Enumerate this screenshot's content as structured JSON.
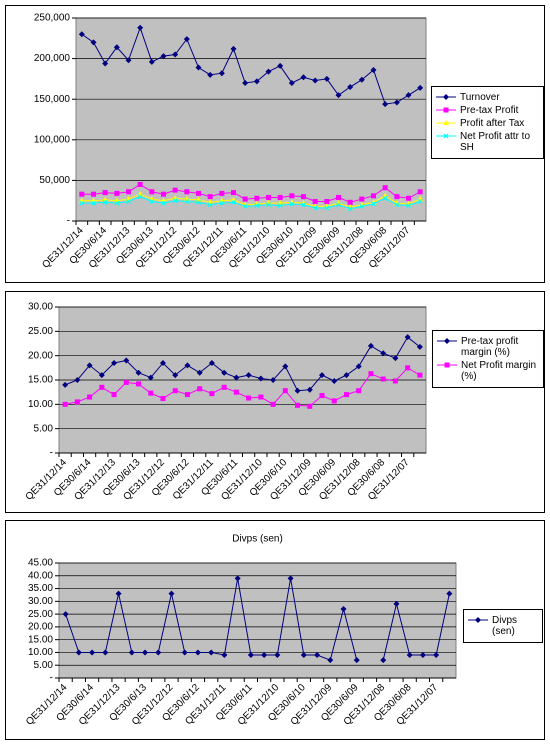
{
  "chart_data": [
    {
      "type": "line",
      "grid": true,
      "legend": "right",
      "categories": [
        "QE31/12/14",
        null,
        "QE30/6/14",
        null,
        "QE31/12/13",
        null,
        "QE30/6/13",
        null,
        "QE31/12/12",
        null,
        "QE30/6/12",
        null,
        "QE31/12/11",
        null,
        "QE30/6/11",
        null,
        "QE31/12/10",
        null,
        "QE30/6/10",
        null,
        "QE31/12/09",
        null,
        "QE30/6/09",
        null,
        "QE31/12/08",
        null,
        "QE30/6/08",
        null,
        "QE31/12/07",
        null
      ],
      "ylim": [
        0,
        250000
      ],
      "yticks": [
        {
          "value": 0,
          "label": "-"
        },
        {
          "value": 50000,
          "label": "50,000"
        },
        {
          "value": 100000,
          "label": "100,000"
        },
        {
          "value": 150000,
          "label": "150,000"
        },
        {
          "value": 200000,
          "label": "200,000"
        },
        {
          "value": 250000,
          "label": "250,000"
        }
      ],
      "series": [
        {
          "name": "Turnover",
          "color": "#000080",
          "marker": "diamond",
          "values": [
            230000,
            220000,
            194000,
            214000,
            198000,
            238000,
            196000,
            203000,
            205000,
            224000,
            189000,
            180000,
            182000,
            212000,
            170000,
            172000,
            184000,
            191000,
            170000,
            177000,
            173000,
            175000,
            155000,
            165000,
            174000,
            186000,
            144000,
            146000,
            155000,
            164000
          ]
        },
        {
          "name": "Pre-tax Profit",
          "color": "#ff00ff",
          "marker": "square",
          "values": [
            33000,
            33000,
            35000,
            34000,
            36000,
            45000,
            36000,
            33000,
            38000,
            36000,
            34000,
            30000,
            34000,
            35000,
            27000,
            28000,
            29000,
            29000,
            31000,
            30000,
            24000,
            24000,
            29000,
            23000,
            27000,
            31000,
            41000,
            30000,
            28000,
            36000
          ]
        },
        {
          "name": "Profit after Tax",
          "color": "#ffff00",
          "marker": "triangle",
          "values": [
            25000,
            25000,
            26000,
            25000,
            27000,
            33000,
            27000,
            25000,
            28000,
            27000,
            26000,
            23000,
            25000,
            26000,
            20000,
            21000,
            22000,
            22000,
            23000,
            22000,
            18000,
            18000,
            22000,
            17000,
            20000,
            23000,
            31000,
            22000,
            21000,
            27000
          ]
        },
        {
          "name": "Net Profit attr to SH",
          "color": "#00ffff",
          "marker": "x",
          "values": [
            22000,
            22000,
            23000,
            22000,
            24000,
            30000,
            24000,
            22000,
            25000,
            24000,
            23000,
            20000,
            22000,
            23000,
            18000,
            19000,
            20000,
            19000,
            21000,
            20000,
            16000,
            16000,
            20000,
            15000,
            18000,
            21000,
            28000,
            20000,
            19000,
            24000
          ]
        }
      ]
    },
    {
      "type": "line",
      "grid": true,
      "legend": "right",
      "categories": [
        "QE31/12/14",
        null,
        "QE30/6/14",
        null,
        "QE31/12/13",
        null,
        "QE30/6/13",
        null,
        "QE31/12/12",
        null,
        "QE30/6/12",
        null,
        "QE31/12/11",
        null,
        "QE30/6/11",
        null,
        "QE31/12/10",
        null,
        "QE30/6/10",
        null,
        "QE31/12/09",
        null,
        "QE30/6/09",
        null,
        "QE31/12/08",
        null,
        "QE30/6/08",
        null,
        "QE31/12/07",
        null
      ],
      "ylim": [
        0,
        30
      ],
      "yticks": [
        {
          "value": 0,
          "label": "-"
        },
        {
          "value": 5,
          "label": "5.00"
        },
        {
          "value": 10,
          "label": "10.00"
        },
        {
          "value": 15,
          "label": "15.00"
        },
        {
          "value": 20,
          "label": "20.00"
        },
        {
          "value": 25,
          "label": "25.00"
        },
        {
          "value": 30,
          "label": "30.00"
        }
      ],
      "series": [
        {
          "name": "Pre-tax profit margin (%)",
          "color": "#000080",
          "marker": "diamond",
          "values": [
            14,
            15,
            18,
            16,
            18.5,
            19,
            16.5,
            15.5,
            18.5,
            16,
            18,
            16.5,
            18.5,
            16.5,
            15.5,
            16,
            15.3,
            15,
            17.8,
            12.8,
            13,
            16,
            14.8,
            16,
            17.8,
            22,
            20.5,
            19.5,
            23.8,
            21.8
          ]
        },
        {
          "name": "Net Profit margin (%)",
          "color": "#ff00ff",
          "marker": "square",
          "values": [
            10,
            10.5,
            11.5,
            13.5,
            12,
            14.5,
            14.2,
            12.3,
            11.2,
            12.8,
            12,
            13.2,
            12.2,
            13.5,
            12.5,
            11.3,
            11.5,
            10,
            12.8,
            9.8,
            9.6,
            11.8,
            10.7,
            12,
            12.8,
            16.3,
            15.2,
            14.8,
            17.5,
            16
          ]
        }
      ]
    },
    {
      "type": "line",
      "grid": true,
      "legend": "right",
      "title": "Divps (sen)",
      "categories": [
        "QE31/12/14",
        null,
        "QE30/6/14",
        null,
        "QE31/12/13",
        null,
        "QE30/6/13",
        null,
        "QE31/12/12",
        null,
        "QE30/6/12",
        null,
        "QE31/12/11",
        null,
        "QE30/6/11",
        null,
        "QE31/12/10",
        null,
        "QE30/6/10",
        null,
        "QE31/12/09",
        null,
        "QE30/6/09",
        null,
        "QE31/12/08",
        null,
        "QE30/6/08",
        null,
        "QE31/12/07",
        null
      ],
      "ylim": [
        0,
        45
      ],
      "yticks": [
        {
          "value": 0,
          "label": "-"
        },
        {
          "value": 5,
          "label": "5.00"
        },
        {
          "value": 10,
          "label": "10.00"
        },
        {
          "value": 15,
          "label": "15.00"
        },
        {
          "value": 20,
          "label": "20.00"
        },
        {
          "value": 25,
          "label": "25.00"
        },
        {
          "value": 30,
          "label": "30.00"
        },
        {
          "value": 35,
          "label": "35.00"
        },
        {
          "value": 40,
          "label": "40.00"
        },
        {
          "value": 45,
          "label": "45.00"
        }
      ],
      "series": [
        {
          "name": "Divps (sen)",
          "color": "#000080",
          "marker": "diamond",
          "values": [
            25,
            10,
            10,
            10,
            33,
            10,
            10,
            10,
            33,
            10,
            10,
            10,
            9,
            39,
            9,
            9,
            9,
            39,
            9,
            9,
            7,
            27,
            7,
            null,
            7,
            29,
            9,
            9,
            9,
            33
          ]
        }
      ]
    }
  ]
}
